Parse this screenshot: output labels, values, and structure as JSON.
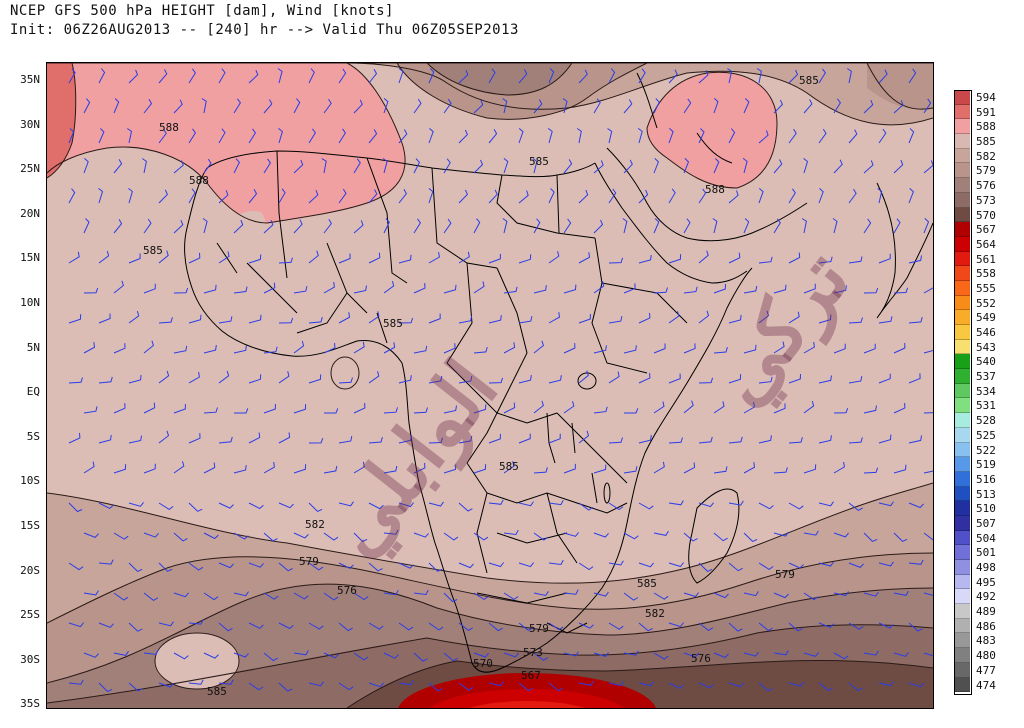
{
  "header": {
    "line1": "NCEP GFS 500 hPa HEIGHT [dam], Wind [knots]",
    "line2": "Init: 06Z26AUG2013 -- [240] hr --> Valid Thu 06Z05SEP2013"
  },
  "latitude_labels": [
    "35N",
    "30N",
    "25N",
    "20N",
    "15N",
    "10N",
    "5N",
    "EQ",
    "5S",
    "10S",
    "15S",
    "20S",
    "25S",
    "30S",
    "35S"
  ],
  "contour_labels": {
    "c588_nw": "588",
    "c588_w": "588",
    "c585_w": "585",
    "c585_n": "585",
    "c585_ne": "585",
    "c588_arabia": "588",
    "c585_center": "585",
    "c585_sudan": "585",
    "c582_w": "582",
    "c579_w": "579",
    "c576_w": "576",
    "c585_sw": "585",
    "c585_mad": "585",
    "c582_mad": "582",
    "c579_e": "579",
    "c579_sa": "579",
    "c576_e": "576",
    "c573_sa": "573",
    "c570_sa": "570",
    "c567_sa": "567"
  },
  "legend": {
    "values": [
      "594",
      "591",
      "588",
      "585",
      "582",
      "579",
      "576",
      "573",
      "570",
      "567",
      "564",
      "561",
      "558",
      "555",
      "552",
      "549",
      "546",
      "543",
      "540",
      "537",
      "534",
      "531",
      "528",
      "525",
      "522",
      "519",
      "516",
      "513",
      "510",
      "507",
      "504",
      "501",
      "498",
      "495",
      "492",
      "489",
      "486",
      "483",
      "480",
      "477",
      "474"
    ],
    "colors": [
      "#c9484a",
      "#e06e6a",
      "#f0a0a0",
      "#d8b8b0",
      "#c8a59a",
      "#b8948a",
      "#a2807a",
      "#8e6b64",
      "#6e4c44",
      "#b00000",
      "#cc0000",
      "#e21a10",
      "#f04818",
      "#f86818",
      "#f88c18",
      "#f8ac28",
      "#f8c840",
      "#f8e070",
      "#18a018",
      "#30b030",
      "#60c860",
      "#80e080",
      "#a8ece0",
      "#a8d8f0",
      "#88c0f0",
      "#5898e8",
      "#3070d8",
      "#2050c0",
      "#2030a0",
      "#3030a0",
      "#5050c8",
      "#7070d8",
      "#9090e0",
      "#b8b8f0",
      "#d8d8f8",
      "#c8c8c8",
      "#b0b0b0",
      "#989898",
      "#808080",
      "#686868",
      "#505050"
    ]
  },
  "watermark": {
    "line1": "تركي",
    "line2": "الوابلي"
  },
  "colors": {
    "barb": "#2b3dea",
    "coast": "#000000",
    "fill_585": "#dbbdb5",
    "fill_588": "#f0a0a0",
    "fill_591": "#e06e6a",
    "fill_582": "#c8a59a",
    "fill_579": "#b8948a",
    "fill_576": "#a2807a",
    "fill_573": "#8e6b64",
    "fill_570": "#6e4c44"
  }
}
